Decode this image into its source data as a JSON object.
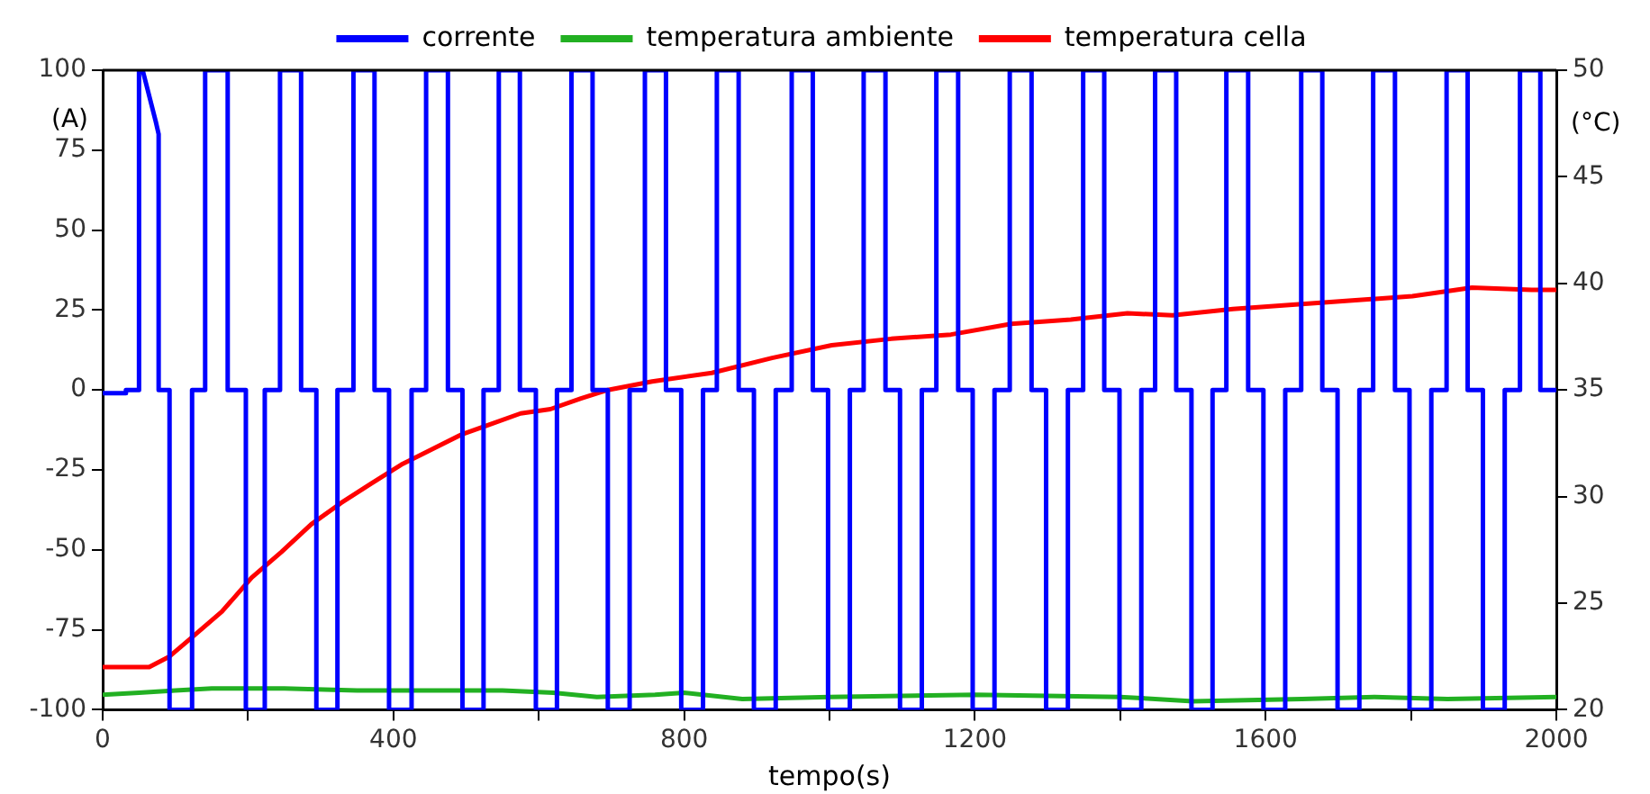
{
  "chart_data": {
    "type": "line",
    "xlabel": "tempo(s)",
    "ylabel": "(A)",
    "y2label": "(°C)",
    "xlim": [
      0,
      2000
    ],
    "xticks": [
      0,
      {
        "value": 200,
        "label": null
      },
      400,
      {
        "value": 600,
        "label": null
      },
      800,
      {
        "value": 1000,
        "label": null
      },
      1200,
      {
        "value": 1400,
        "label": null
      },
      1600,
      {
        "value": 1800,
        "label": null
      },
      2000
    ],
    "ylim": [
      -100,
      100
    ],
    "yticks": [
      -100,
      -75,
      -50,
      -25,
      0,
      25,
      50,
      75,
      100
    ],
    "y2lim": [
      20,
      50
    ],
    "y2ticks": [
      20,
      25,
      30,
      35,
      40,
      45,
      50
    ],
    "grid": false,
    "legend": "top",
    "marker": "none",
    "line_style": "solid",
    "series": [
      {
        "name": "corrente",
        "color": "#0000ff",
        "axis": "y",
        "x": [
          0,
          32,
          32,
          50,
          50,
          55,
          73,
          77,
          77,
          92,
          92,
          123,
          123,
          141,
          141,
          172,
          172,
          197,
          197,
          223,
          223,
          244,
          244,
          273,
          273,
          294,
          294,
          323,
          323,
          345,
          345,
          374,
          374,
          394,
          394,
          425,
          425,
          445,
          445,
          475,
          475,
          495,
          495,
          524,
          524,
          545,
          545,
          574,
          574,
          596,
          596,
          625,
          625,
          645,
          645,
          674,
          674,
          695,
          695,
          725,
          725,
          746,
          746,
          775,
          775,
          796,
          796,
          826,
          826,
          845,
          845,
          875,
          875,
          896,
          896,
          926,
          926,
          948,
          948,
          977,
          977,
          998,
          998,
          1028,
          1028,
          1047,
          1047,
          1077,
          1077,
          1097,
          1097,
          1127,
          1127,
          1147,
          1147,
          1177,
          1177,
          1197,
          1197,
          1227,
          1227,
          1248,
          1248,
          1278,
          1278,
          1298,
          1298,
          1328,
          1328,
          1349,
          1349,
          1378,
          1378,
          1399,
          1399,
          1429,
          1429,
          1448,
          1448,
          1477,
          1477,
          1498,
          1498,
          1527,
          1527,
          1546,
          1546,
          1576,
          1576,
          1597,
          1597,
          1627,
          1627,
          1649,
          1649,
          1678,
          1678,
          1699,
          1699,
          1729,
          1729,
          1748,
          1748,
          1778,
          1778,
          1798,
          1798,
          1828,
          1828,
          1849,
          1849,
          1878,
          1878,
          1899,
          1899,
          1929,
          1929,
          1950,
          1950,
          1978,
          1978,
          2000
        ],
        "values": [
          -1,
          -1,
          0,
          0,
          100,
          100,
          84,
          80,
          0,
          0,
          -100,
          -100,
          0,
          0,
          100,
          100,
          0,
          0,
          -100,
          -100,
          0,
          0,
          100,
          100,
          0,
          0,
          -100,
          -100,
          0,
          0,
          100,
          100,
          0,
          0,
          -100,
          -100,
          0,
          0,
          100,
          100,
          0,
          0,
          -100,
          -100,
          0,
          0,
          100,
          100,
          0,
          0,
          -100,
          -100,
          0,
          0,
          100,
          100,
          0,
          0,
          -100,
          -100,
          0,
          0,
          100,
          100,
          0,
          0,
          -100,
          -100,
          0,
          0,
          100,
          100,
          0,
          0,
          -100,
          -100,
          0,
          0,
          100,
          100,
          0,
          0,
          -100,
          -100,
          0,
          0,
          100,
          100,
          0,
          0,
          -100,
          -100,
          0,
          0,
          100,
          100,
          0,
          0,
          -100,
          -100,
          0,
          0,
          100,
          100,
          0,
          0,
          -100,
          -100,
          0,
          0,
          100,
          100,
          0,
          0,
          -100,
          -100,
          0,
          0,
          100,
          100,
          0,
          0,
          -100,
          -100,
          0,
          0,
          100,
          100,
          0,
          0,
          -100,
          -100,
          0,
          0,
          100,
          100,
          0,
          0,
          -100,
          -100,
          0,
          0,
          100,
          100,
          0,
          0,
          -100,
          -100,
          0,
          0,
          100,
          100,
          0,
          0,
          -100,
          -100,
          0,
          0,
          100,
          100,
          0,
          0
        ]
      },
      {
        "name": "temperatura ambiente",
        "color": "#22b022",
        "axis": "y2",
        "x": [
          0,
          50,
          100,
          150,
          250,
          350,
          450,
          550,
          620,
          680,
          760,
          800,
          880,
          1000,
          1200,
          1400,
          1500,
          1650,
          1750,
          1850,
          2000
        ],
        "values": [
          20.7,
          20.8,
          20.9,
          21.0,
          21.0,
          20.9,
          20.9,
          20.9,
          20.8,
          20.6,
          20.7,
          20.8,
          20.5,
          20.6,
          20.7,
          20.6,
          20.4,
          20.5,
          20.6,
          20.5,
          20.6
        ]
      },
      {
        "name": "temperatura cella",
        "color": "#ff0000",
        "axis": "y2",
        "x": [
          0,
          64,
          92,
          123,
          164,
          205,
          246,
          287,
          328,
          369,
          411,
          452,
          493,
          534,
          575,
          616,
          658,
          695,
          756,
          838,
          921,
          1003,
          1085,
          1167,
          1250,
          1332,
          1410,
          1472,
          1555,
          1637,
          1719,
          1802,
          1884,
          1966,
          2000
        ],
        "values": [
          22.0,
          22.0,
          22.5,
          23.4,
          24.6,
          26.2,
          27.4,
          28.7,
          29.7,
          30.6,
          31.5,
          32.2,
          32.9,
          33.4,
          33.9,
          34.1,
          34.6,
          35.0,
          35.4,
          35.8,
          36.5,
          37.1,
          37.4,
          37.6,
          38.1,
          38.3,
          38.6,
          38.5,
          38.8,
          39.0,
          39.2,
          39.4,
          39.8,
          39.7,
          39.7
        ]
      }
    ]
  }
}
